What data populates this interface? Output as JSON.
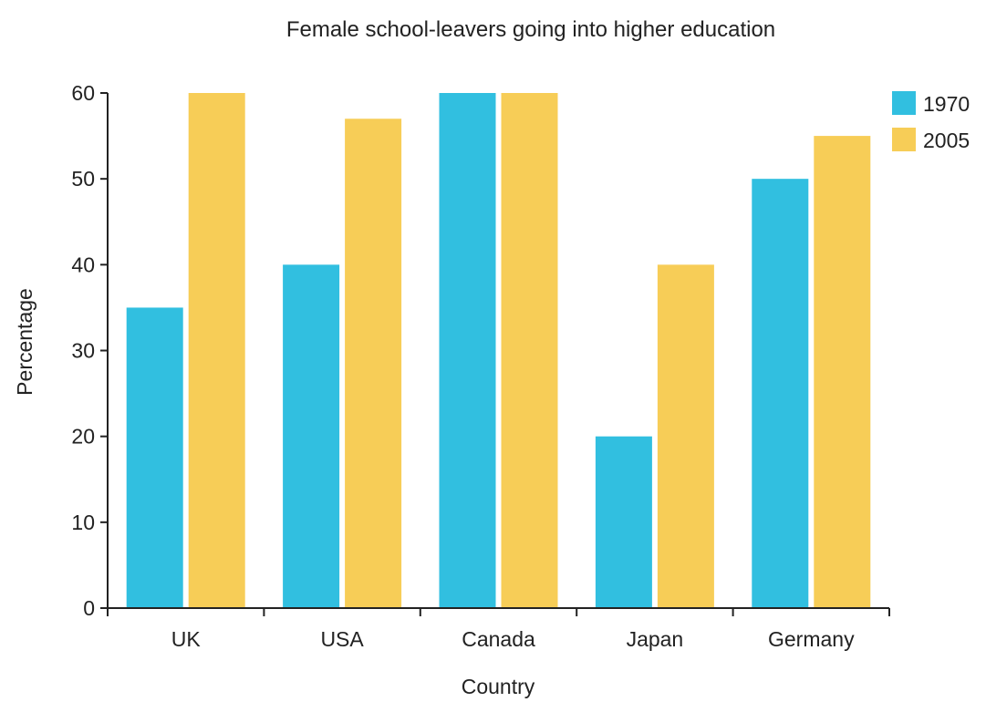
{
  "chart_data": {
    "type": "bar",
    "title": "Female school-leavers going into higher education",
    "xlabel": "Country",
    "ylabel": "Percentage",
    "categories": [
      "UK",
      "USA",
      "Canada",
      "Japan",
      "Germany"
    ],
    "series": [
      {
        "name": "1970",
        "color": "#31bfe0",
        "values": [
          35,
          40,
          60,
          20,
          50
        ]
      },
      {
        "name": "2005",
        "color": "#f7cd57",
        "values": [
          60,
          57,
          60,
          40,
          55
        ]
      }
    ],
    "ylim": [
      0,
      60
    ],
    "yticks": [
      0,
      10,
      20,
      30,
      40,
      50,
      60
    ],
    "grid": false,
    "legend_position": "top-right"
  }
}
